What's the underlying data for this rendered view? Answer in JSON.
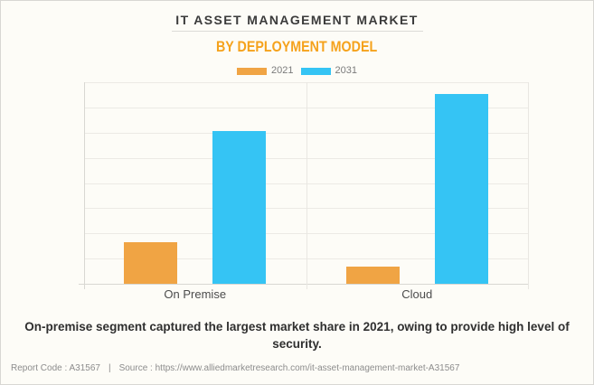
{
  "page": {
    "title": "IT ASSET MANAGEMENT MARKET",
    "subtitle": "BY DEPLOYMENT MODEL",
    "note": "On-premise segment captured the largest market share in 2021, owing to provide high level of security.",
    "report_code": "Report Code : A31567",
    "separator": "|",
    "source": "Source : https://www.alliedmarketresearch.com/it-asset-management-market-A31567"
  },
  "colors": {
    "background": "#FDFCF7",
    "title_text": "#3B3B3B",
    "subtitle_orange": "#F5A21C",
    "series_2021_orange": "#F0A444",
    "series_2031_blue": "#35C4F4",
    "legend_text": "#7B7B7B",
    "category_label_text": "#4C4C4C",
    "note_text": "#2F2F2F",
    "footer_text": "#8C8C8C",
    "gridline": "#ECEAE5",
    "axis_line": "#D9D8D3"
  },
  "legend": [
    {
      "label": "2021",
      "color": "#F0A444"
    },
    {
      "label": "2031",
      "color": "#35C4F4"
    }
  ],
  "chart_data": {
    "type": "bar",
    "title": "IT ASSET MANAGEMENT MARKET",
    "subtitle": "BY DEPLOYMENT MODEL",
    "categories": [
      "On Premise",
      "Cloud"
    ],
    "series": [
      {
        "name": "2021",
        "color": "#F0A444",
        "values": [
          1.65,
          0.68
        ]
      },
      {
        "name": "2031",
        "color": "#35C4F4",
        "values": [
          6.05,
          7.55
        ]
      }
    ],
    "xlabel": "",
    "ylabel": "",
    "ylim": [
      0,
      8
    ],
    "gridline_intervals": 8,
    "grid": true,
    "value_axis_labels_visible": false,
    "legend_position": "top"
  }
}
